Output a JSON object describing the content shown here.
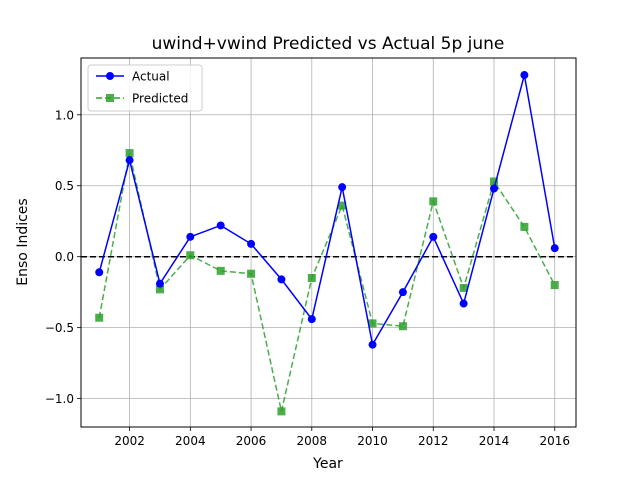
{
  "chart_data": {
    "type": "line",
    "title": "uwind+vwind Predicted vs Actual 5p june",
    "xlabel": "Year",
    "ylabel": "Enso Indices",
    "xlim": [
      2000.4,
      2016.7
    ],
    "ylim": [
      -1.2,
      1.4
    ],
    "xticks": [
      2002,
      2004,
      2006,
      2008,
      2010,
      2012,
      2014,
      2016
    ],
    "xtick_labels": [
      "2002",
      "2004",
      "2006",
      "2008",
      "2010",
      "2012",
      "2014",
      "2016"
    ],
    "yticks": [
      -1.0,
      -0.5,
      0.0,
      0.5,
      1.0
    ],
    "ytick_labels": [
      "−1.0",
      "−0.5",
      "0.0",
      "0.5",
      "1.0"
    ],
    "grid": true,
    "legend_position": "top-left",
    "reference_line": {
      "y": 0,
      "style": "dashed",
      "color": "#000000"
    },
    "x": [
      2001,
      2002,
      2003,
      2004,
      2005,
      2006,
      2007,
      2008,
      2009,
      2010,
      2011,
      2012,
      2013,
      2014,
      2015,
      2016
    ],
    "series": [
      {
        "name": "Actual",
        "color": "#0000ff",
        "line_style": "solid",
        "marker": "circle",
        "values": [
          -0.11,
          0.68,
          -0.19,
          0.14,
          0.22,
          0.09,
          -0.16,
          -0.44,
          0.49,
          -0.62,
          -0.25,
          0.14,
          -0.33,
          0.48,
          1.28,
          0.06
        ]
      },
      {
        "name": "Predicted",
        "color": "#2ca02c",
        "line_style": "dashed",
        "marker": "square",
        "values": [
          -0.43,
          0.73,
          -0.23,
          0.01,
          -0.1,
          -0.12,
          -1.09,
          -0.15,
          0.36,
          -0.47,
          -0.49,
          0.39,
          -0.22,
          0.53,
          0.21,
          -0.2
        ]
      }
    ]
  }
}
